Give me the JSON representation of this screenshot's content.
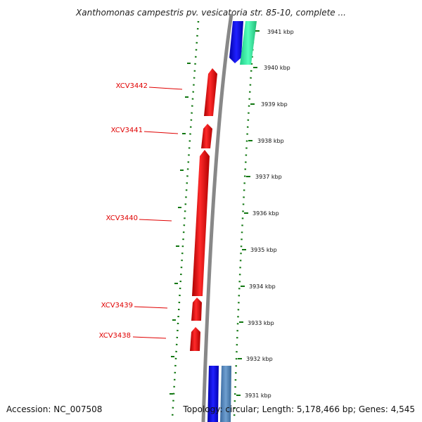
{
  "title": "Xanthomonas campestris pv. vesicatoria str. 85-10, complete ...",
  "footer": {
    "accession": "Accession: NC_007508",
    "summary": "Topology: circular; Length: 5,178,466 bp; Genes: 4,545"
  },
  "scale_labels": [
    "3941 kbp",
    "3940 kbp",
    "3939 kbp",
    "3938 kbp",
    "3937 kbp",
    "3936 kbp",
    "3935 kbp",
    "3934 kbp",
    "3933 kbp",
    "3932 kbp",
    "3931 kbp"
  ],
  "genes": [
    {
      "id": "XCV3442",
      "strand": "reverse",
      "color": "#ee0000"
    },
    {
      "id": "XCV3441",
      "strand": "reverse",
      "color": "#ee0000"
    },
    {
      "id": "XCV3440",
      "strand": "reverse",
      "color": "#ee0000"
    },
    {
      "id": "XCV3439",
      "strand": "reverse",
      "color": "#ee0000"
    },
    {
      "id": "XCV3438",
      "strand": "reverse",
      "color": "#ee0000"
    }
  ],
  "colors": {
    "reverse_gene": "#ee0000",
    "forward_gene_blue": "#1010dd",
    "forward_gene_teal": "#33ee99",
    "forward_gene_steel": "#4a7fb5",
    "backbone": "#888888",
    "dotted_track": "#117711"
  }
}
